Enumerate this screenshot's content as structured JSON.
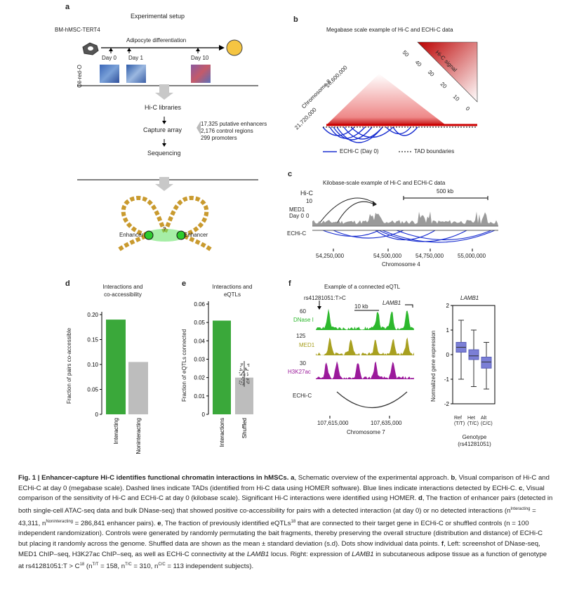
{
  "panels": {
    "a": {
      "label": "a",
      "title": "Experimental setup",
      "cell_line": "BM-hMSC-TERT4",
      "process": "Adipocyte differentiation",
      "days": [
        "Day 0",
        "Day 1",
        "Day 10"
      ],
      "stain": "Oil-red-O",
      "steps": [
        "Hi-C libraries",
        "Capture array",
        "Sequencing"
      ],
      "capture_items": [
        "17,325 putative enhancers",
        "2,176 control regions",
        "299 promoters"
      ],
      "enhancer_left": "Enhancer",
      "enhancer_right": "Enhancer",
      "question": "?"
    },
    "b": {
      "label": "b",
      "title": "Megabase scale example of Hi-C and ECHi-C data",
      "chrom": "Chromosome 8",
      "coord1": "26,600,000",
      "coord2": "21,720,000",
      "signal_label": "Hi-C signal",
      "scale_ticks": [
        "50",
        "40",
        "30",
        "20",
        "10",
        "0"
      ],
      "legend_echic": "ECHi-C (Day 0)",
      "legend_tad": "TAD boundaries"
    },
    "c": {
      "label": "c",
      "title": "Kilobase-scale example of Hi-C and ECHi-C data",
      "track_hic": "Hi-C",
      "track_hic_max": "10",
      "track_med1": "MED1",
      "track_day": "Day 0",
      "track_med1_min": "0",
      "track_echic": "ECHi-C",
      "scalebar": "500 kb",
      "xticks": [
        "54,250,000",
        "54,500,000",
        "54,750,000",
        "55,000,000"
      ],
      "xlabel": "Chromosome 4"
    },
    "d": {
      "label": "d",
      "title_line1": "Interactions and",
      "title_line2": "co-accessibility",
      "ylabel": "Fraction of pairs co-accessible",
      "categories": [
        "Interacting",
        "Noninteracting"
      ]
    },
    "e": {
      "label": "e",
      "title_line1": "Interactions and",
      "title_line2": "eQTLs",
      "ylabel": "Fraction of eQTLs connected",
      "categories": [
        "Interactions",
        "Shuffled"
      ]
    },
    "f": {
      "label": "f",
      "title": "Example of a connected eQTL",
      "snp": "rs41281051:T>C",
      "scalebar": "10 kb",
      "gene": "LAMB1",
      "tracks": [
        {
          "name": "DNase I",
          "max": "60",
          "color": "#2db82d"
        },
        {
          "name": "MED1",
          "max": "125",
          "color": "#a8a020"
        },
        {
          "name": "H3K27ac",
          "max": "30",
          "color": "#9b1a9b"
        }
      ],
      "echic": "ECHi-C",
      "xticks": [
        "107,615,000",
        "107,635,000"
      ],
      "xlabel": "Chromosome 7",
      "box_title": "LAMB1",
      "box_ylabel": "Normalized gene expression",
      "box_cats": [
        {
          "l1": "Ref",
          "l2": "(T/T)"
        },
        {
          "l1": "Het",
          "l2": "(T/C)"
        },
        {
          "l1": "Alt",
          "l2": "(C/C)"
        }
      ],
      "box_xlabel1": "Genotype",
      "box_xlabel2": "(rs41281051)"
    }
  },
  "chart_data": [
    {
      "type": "bar",
      "categories": [
        "Interacting",
        "Noninteracting"
      ],
      "values": [
        0.19,
        0.105
      ],
      "ylim": [
        0,
        0.2
      ],
      "yticks": [
        "0",
        "0.05",
        "0.10",
        "0.15",
        "0.20"
      ],
      "colors": [
        "#3aa83a",
        "#bdbdbd"
      ]
    },
    {
      "type": "bar",
      "categories": [
        "Interactions",
        "Shuffled"
      ],
      "values": [
        0.051,
        0.02
      ],
      "ylim": [
        0,
        0.06
      ],
      "yticks": [
        "0",
        "0.01",
        "0.02",
        "0.03",
        "0.04",
        "0.05",
        "0.06"
      ],
      "colors": [
        "#3aa83a",
        "#bdbdbd"
      ]
    },
    {
      "type": "box",
      "categories": [
        "Ref (T/T)",
        "Het (T/C)",
        "Alt (C/C)"
      ],
      "ylim": [
        -2,
        2
      ],
      "yticks": [
        "-2",
        "-1",
        "0",
        "1",
        "2"
      ],
      "boxes": [
        {
          "min": -1,
          "q1": 0.1,
          "median": 0.3,
          "q3": 0.5,
          "max": 1.4
        },
        {
          "min": -1.3,
          "q1": -0.2,
          "median": -0.05,
          "q3": 0.2,
          "max": 1.0
        },
        {
          "min": -1.4,
          "q1": -0.55,
          "median": -0.3,
          "q3": -0.1,
          "max": 0.5
        }
      ],
      "color": "#7b7fd6"
    }
  ],
  "caption": {
    "fig": "Fig. 1 | Enhancer-capture Hi-C identifies functional chromatin interactions in hMSCs.",
    "a_lbl": "a",
    "a": "Schematic overview of the experimental approach.",
    "b_lbl": "b",
    "b": "Visual comparison of Hi-C and ECHi-C at day 0 (megabase scale). Dashed lines indicate TADs (identified from Hi-C data using HOMER software). Blue lines indicate interactions detected by ECHi-C.",
    "c_lbl": "c",
    "c": "Visual comparison of the sensitivity of Hi-C and ECHi-C at day 0 (kilobase scale). Significant Hi-C interactions were identified using HOMER.",
    "d_lbl": "d",
    "d": "The fraction of enhancer pairs (detected in both single-cell ATAC-seq data and bulk DNase-seq) that showed positive co-accessibility for pairs with a detected interaction (at day 0) or no detected interactions (n",
    "d2": "Interacting",
    "d3": " = 43,311, n",
    "d4": "Noninteracting",
    "d5": " = 286,841 enhancer pairs).",
    "e_lbl": "e",
    "e": "The fraction of previously identified eQTLs",
    "e_ref": "18",
    "e2": " that are connected to their target gene in ECHi-C or shuffled controls (n = 100 independent randomization). Controls were generated by randomly permutating the bait fragments, thereby preserving the overall structure (distribution and distance) of ECHi-C but placing it randomly across the genome. Shuffled data are shown as the mean ± standard deviation (s.d). Dots show individual data points.",
    "f_lbl": "f",
    "f": "Left: screenshot of DNase-seq, MED1 ChIP–seq, H3K27ac ChIP–seq, as well as ECHi-C connectivity at the",
    "f_gene": "LAMB1",
    "f2": "locus. Right: expression of",
    "f_gene2": "LAMB1",
    "f3": "in subcutaneous adipose tissue as a function of genotype at rs41281051:T > C",
    "f_ref": "18",
    "f4": " (n",
    "f_s1": "T/T",
    "f5": " = 158, n",
    "f_s2": "T/C",
    "f6": " = 310, n",
    "f_s3": "C/C",
    "f7": " = 113 independent subjects)."
  }
}
